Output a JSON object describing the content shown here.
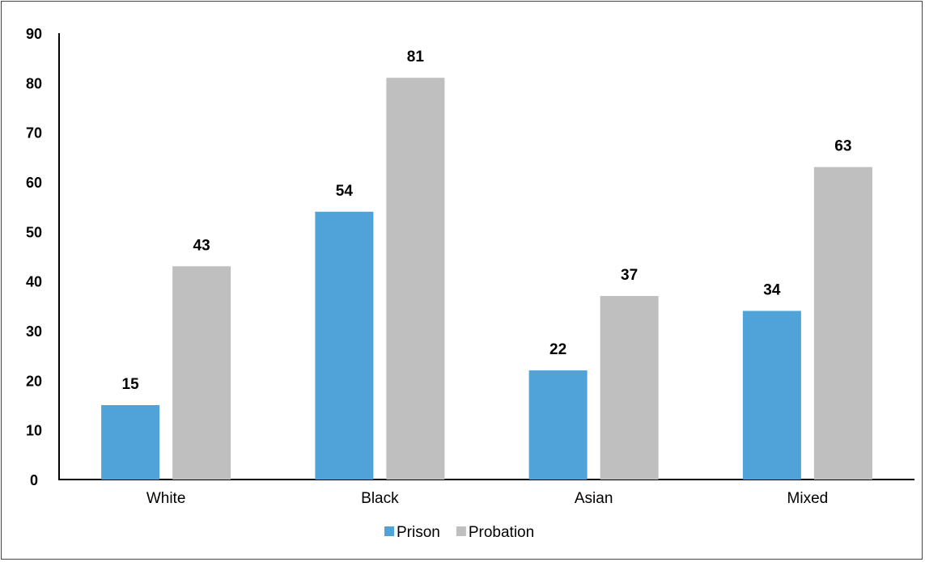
{
  "chart_data": {
    "type": "bar",
    "categories": [
      "White",
      "Black",
      "Asian",
      "Mixed"
    ],
    "series": [
      {
        "name": "Prison",
        "values": [
          15,
          54,
          22,
          34
        ],
        "color": "#4fa3d9"
      },
      {
        "name": "Probation",
        "values": [
          43,
          81,
          37,
          63
        ],
        "color": "#bfbfbf"
      }
    ],
    "ylim": [
      0,
      90
    ],
    "yticks": [
      "0",
      "10",
      "20",
      "30",
      "40",
      "50",
      "60",
      "70",
      "80",
      "90"
    ],
    "grid": false,
    "legend": "bottom-center",
    "title": "",
    "xlabel": "",
    "ylabel": ""
  }
}
